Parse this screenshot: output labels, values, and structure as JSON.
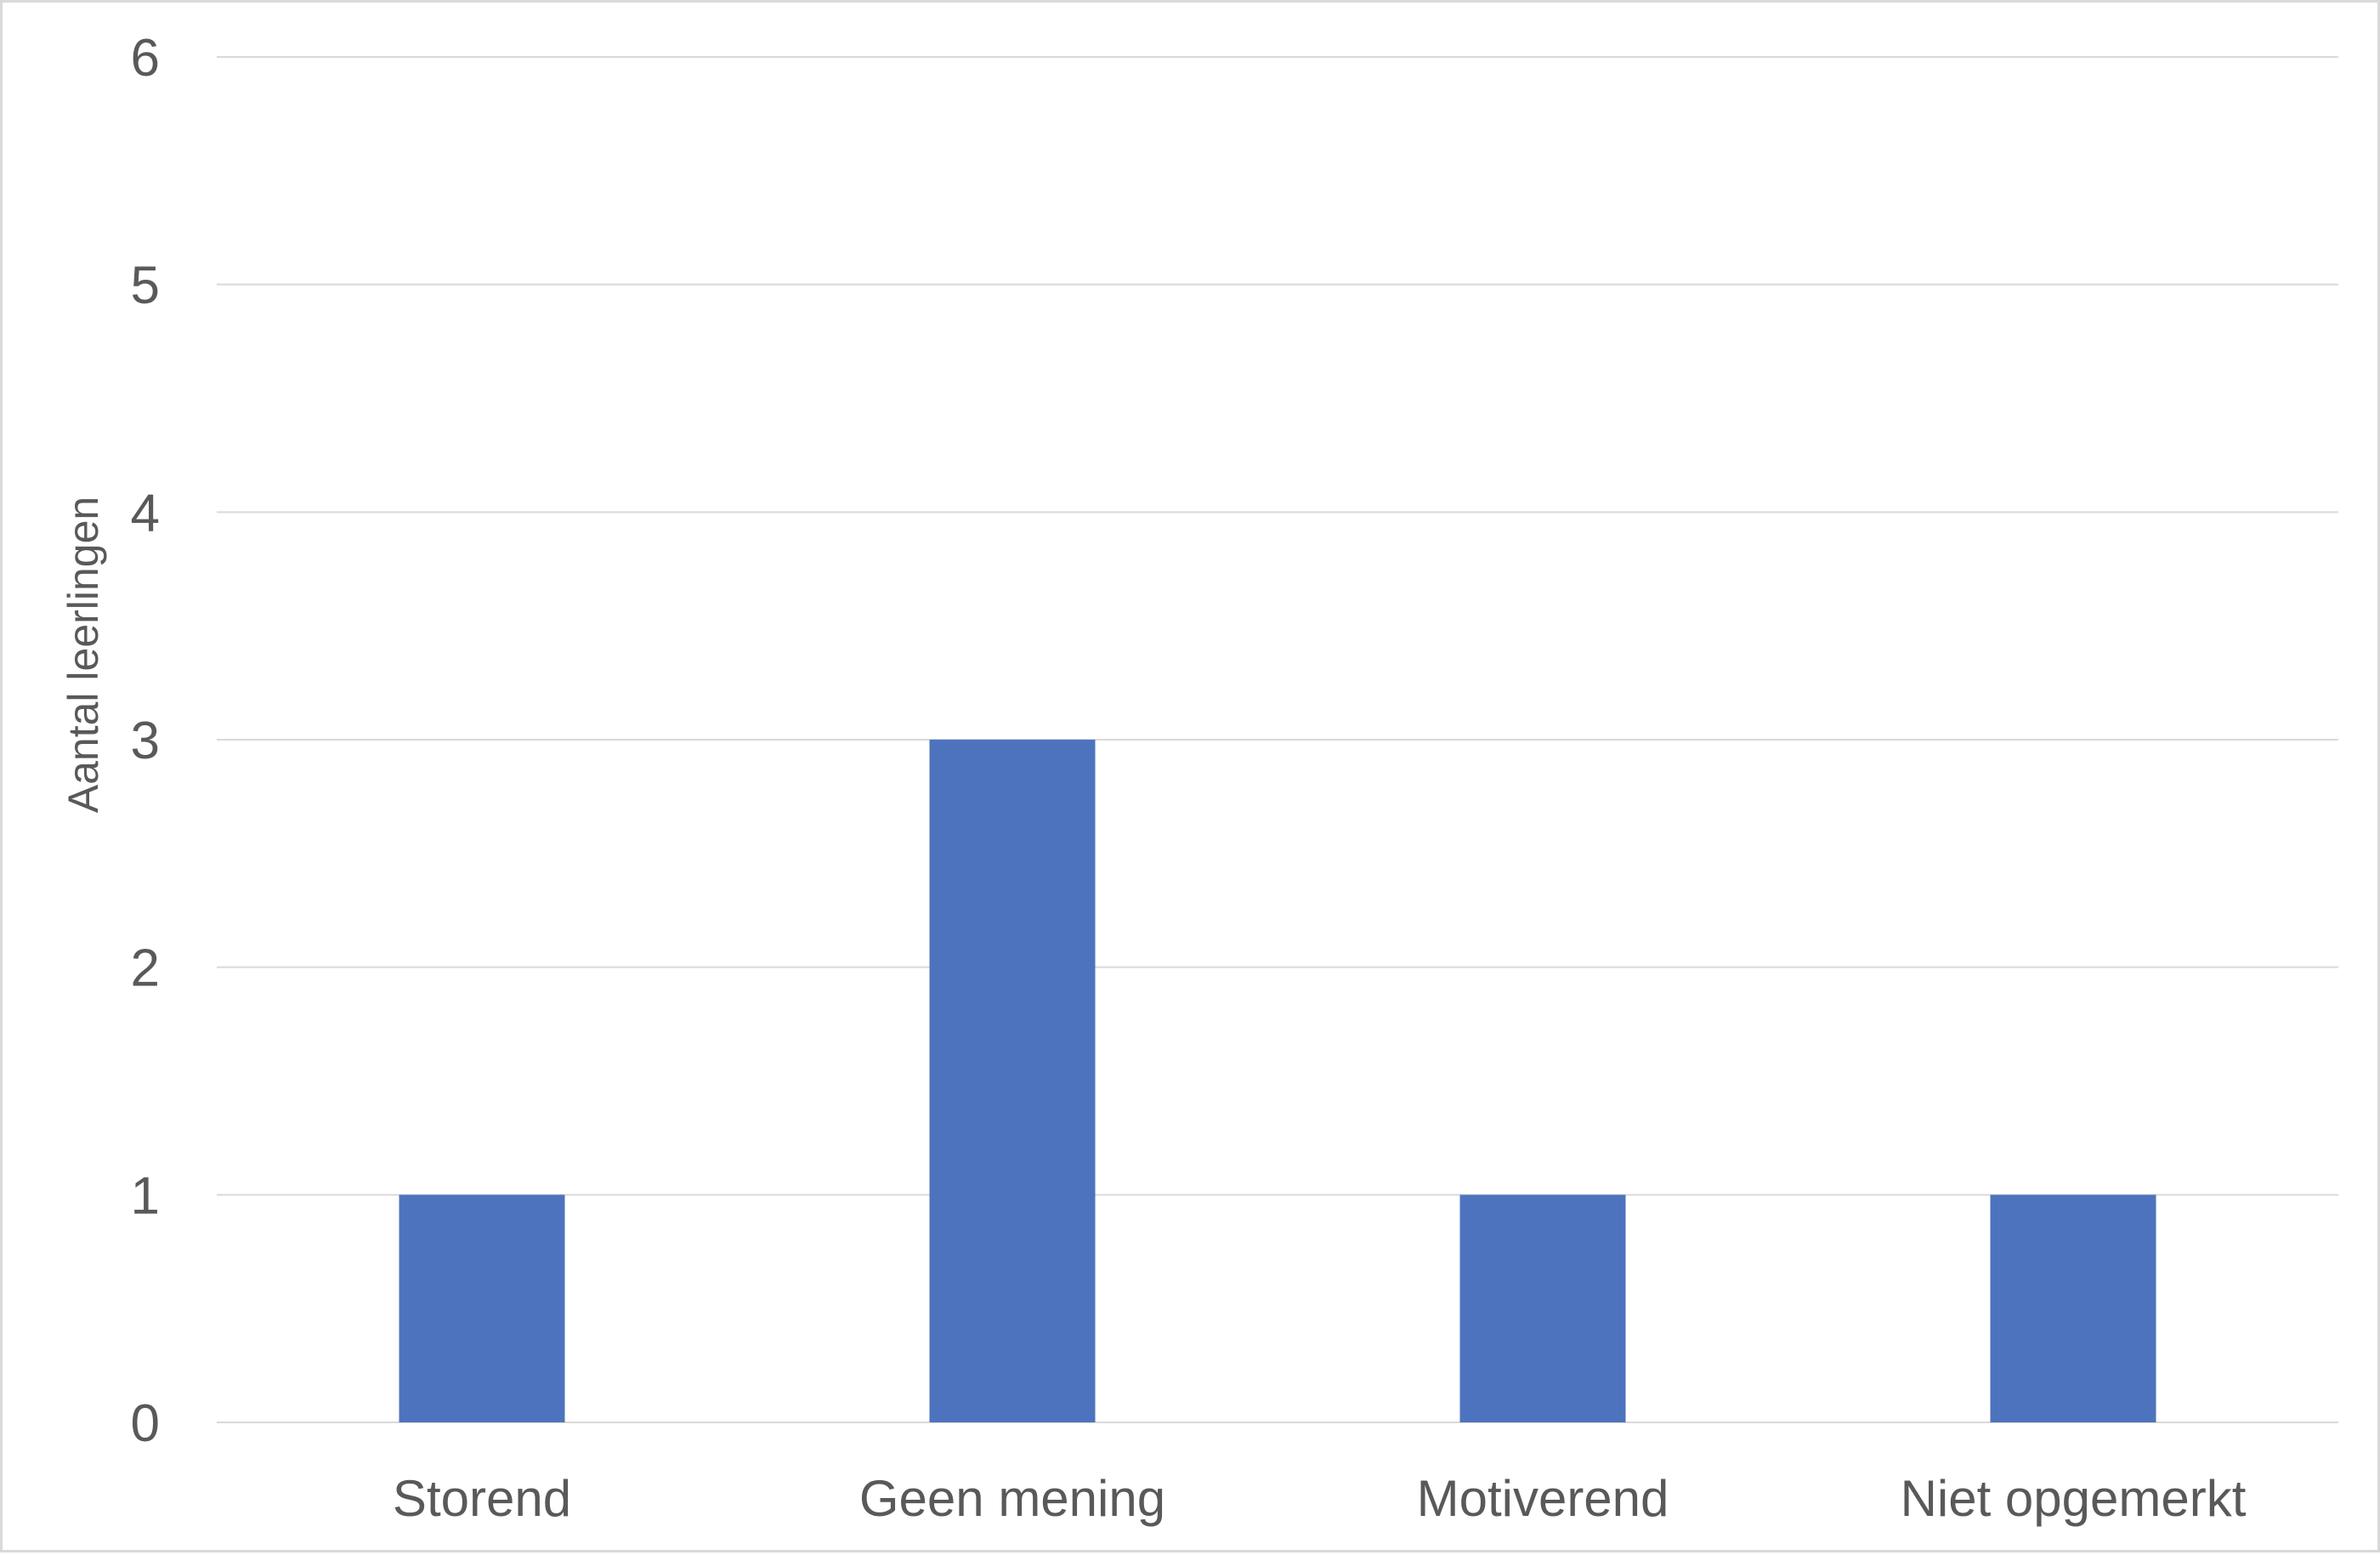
{
  "chart_data": {
    "type": "bar",
    "title": "",
    "xlabel": "",
    "ylabel": "Aantal leerlingen",
    "categories": [
      "Storend",
      "Geen mening",
      "Motiverend",
      "Niet opgemerkt"
    ],
    "series": [
      {
        "values": [
          1,
          3,
          1,
          1
        ],
        "color": "#4e73be"
      }
    ],
    "ylim": [
      0,
      6
    ],
    "yticks": [
      "0",
      "1",
      "2",
      "3",
      "4",
      "5",
      "6"
    ],
    "grid": true,
    "legend": "none"
  },
  "colors": {
    "bar": "#4e73be",
    "grid": "#d9d9d9",
    "text": "#595959",
    "border": "#d9d9d9"
  }
}
